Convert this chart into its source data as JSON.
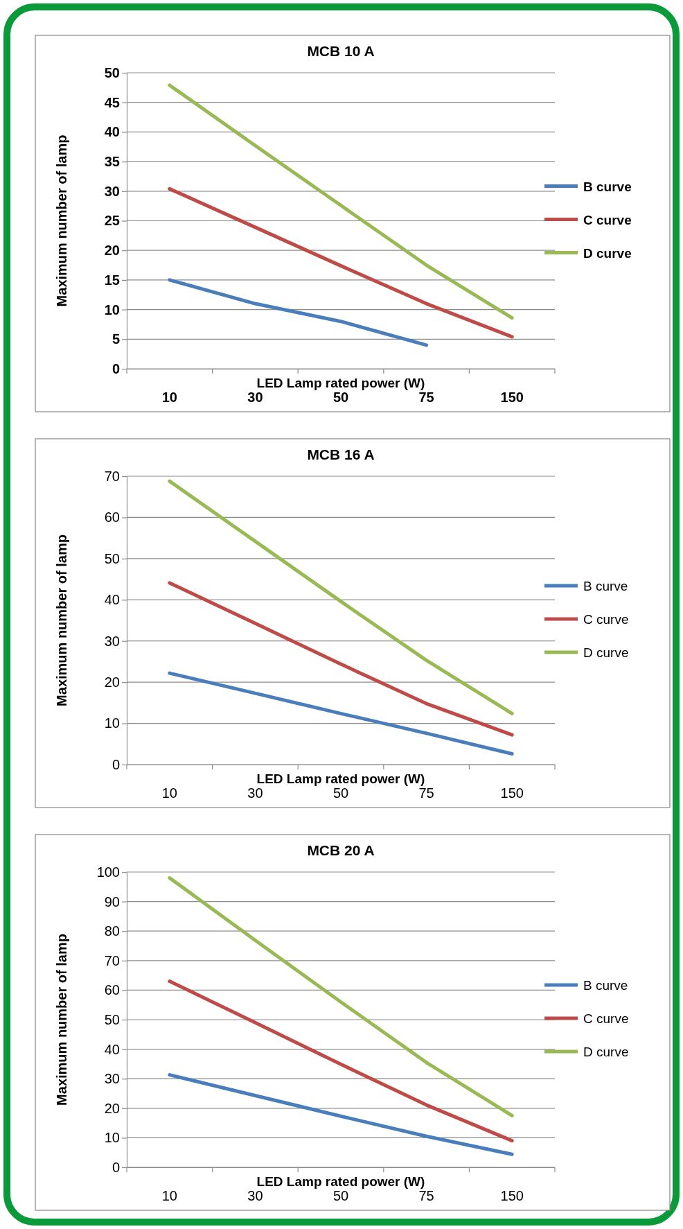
{
  "chart_data": [
    {
      "type": "line",
      "title": "MCB 10 A",
      "xlabel": "LED Lamp rated power (W)",
      "ylabel": "Maximum number of lamp",
      "categories": [
        "10",
        "30",
        "50",
        "75",
        "150"
      ],
      "ylim": [
        0,
        50
      ],
      "yticks": [
        0,
        5,
        10,
        15,
        20,
        25,
        30,
        35,
        40,
        45,
        50
      ],
      "grid": "y",
      "legend": "right",
      "series": [
        {
          "name": "B curve",
          "color": "#4a7ebb",
          "values": [
            15,
            11,
            8,
            4,
            null
          ]
        },
        {
          "name": "C curve",
          "color": "#be4b48",
          "values": [
            30.4,
            23.9,
            17.4,
            11,
            5.4
          ]
        },
        {
          "name": "D curve",
          "color": "#98b954",
          "values": [
            47.9,
            37.7,
            27.6,
            17.5,
            8.6
          ]
        }
      ]
    },
    {
      "type": "line",
      "title": "MCB 16 A",
      "xlabel": "LED Lamp rated power (W)",
      "ylabel": "Maximum number of lamp",
      "categories": [
        "10",
        "30",
        "50",
        "75",
        "150"
      ],
      "ylim": [
        0,
        70
      ],
      "yticks": [
        0,
        10,
        20,
        30,
        40,
        50,
        60,
        70
      ],
      "grid": "y",
      "legend": "right",
      "series": [
        {
          "name": "B curve",
          "color": "#4a7ebb",
          "values": [
            22.2,
            17.3,
            12.4,
            7.6,
            2.6
          ]
        },
        {
          "name": "C curve",
          "color": "#be4b48",
          "values": [
            44.1,
            34.3,
            24.4,
            14.8,
            7.2
          ]
        },
        {
          "name": "D curve",
          "color": "#98b954",
          "values": [
            68.8,
            54.2,
            39.6,
            25.3,
            12.4
          ]
        }
      ]
    },
    {
      "type": "line",
      "title": "MCB 20 A",
      "xlabel": "LED Lamp rated power (W)",
      "ylabel": "Maximum number of lamp",
      "categories": [
        "10",
        "30",
        "50",
        "75",
        "150"
      ],
      "ylim": [
        0,
        100
      ],
      "yticks": [
        0,
        10,
        20,
        30,
        40,
        50,
        60,
        70,
        80,
        90,
        100
      ],
      "grid": "y",
      "legend": "right",
      "series": [
        {
          "name": "B curve",
          "color": "#4a7ebb",
          "values": [
            31.3,
            24.3,
            17.3,
            10.5,
            4.4
          ]
        },
        {
          "name": "C curve",
          "color": "#be4b48",
          "values": [
            63,
            49,
            34.9,
            21.1,
            9
          ]
        },
        {
          "name": "D curve",
          "color": "#98b954",
          "values": [
            98,
            76.9,
            56,
            35.5,
            17.5
          ]
        }
      ]
    }
  ]
}
